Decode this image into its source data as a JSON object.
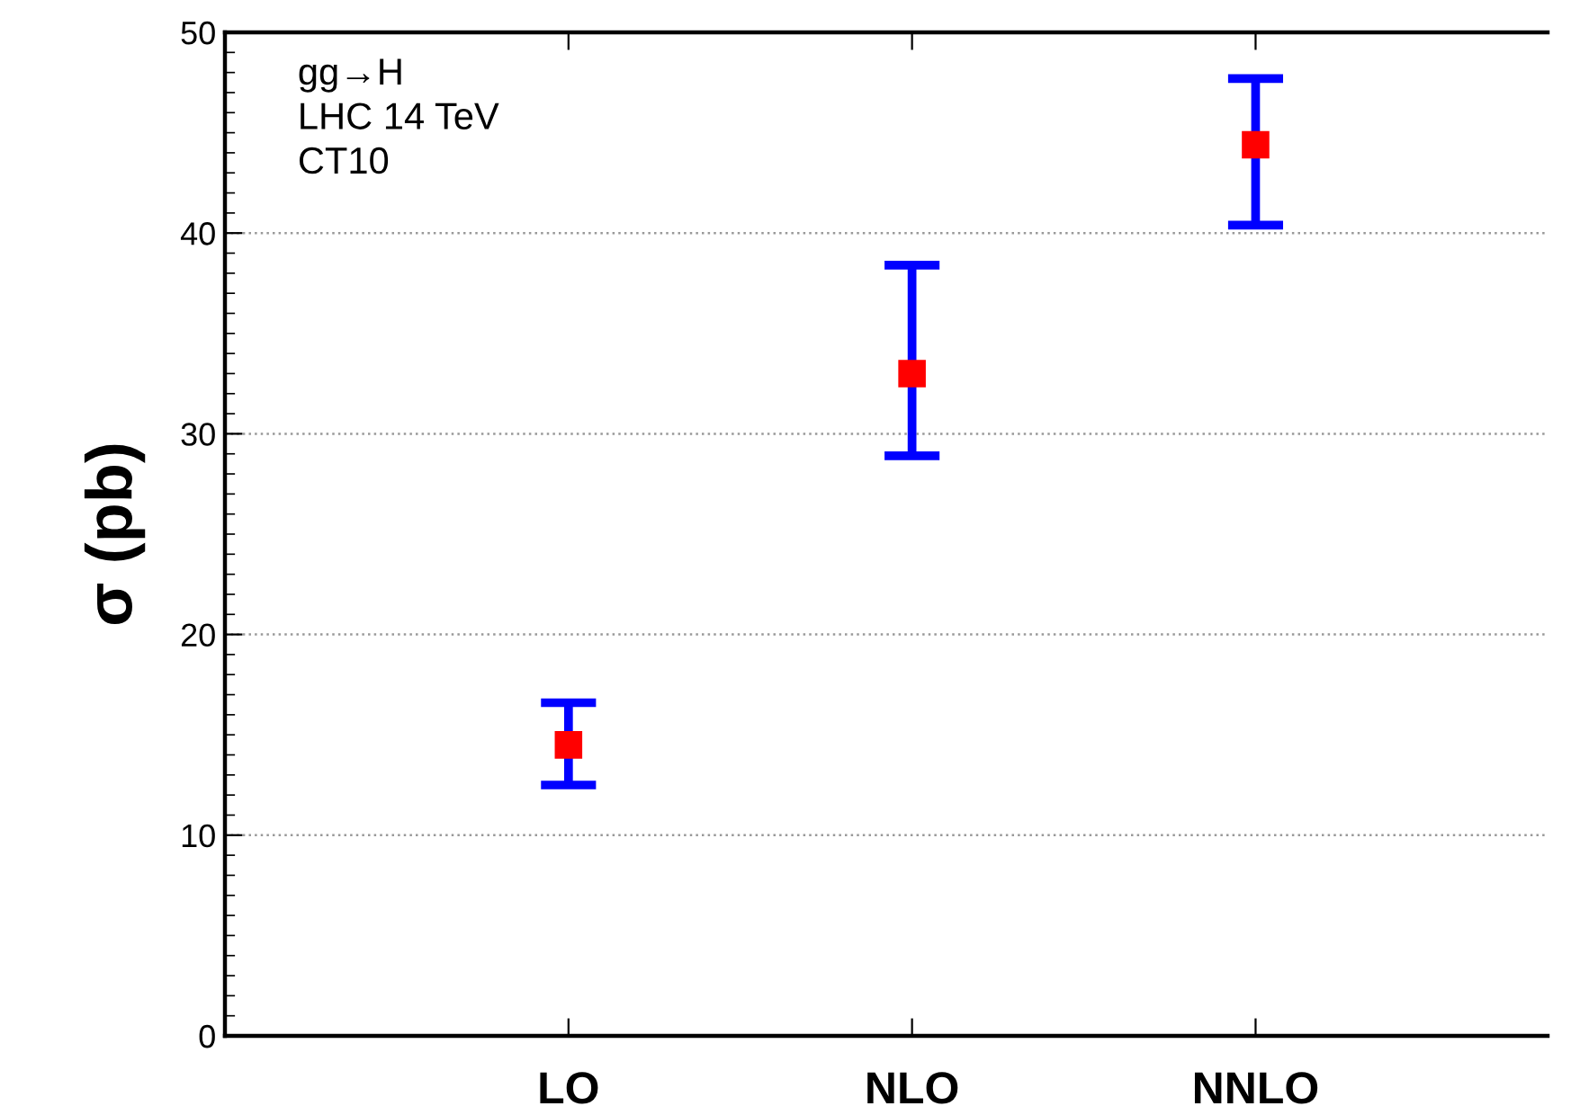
{
  "chart_data": {
    "type": "scatter",
    "ylabel": "σ (pb)",
    "categories": [
      "LO",
      "NLO",
      "NNLO"
    ],
    "series": [
      {
        "color": "#ff0000",
        "values": [
          14.5,
          33.0,
          44.4
        ],
        "errors": [
          [
            12.5,
            16.6
          ],
          [
            28.9,
            38.4
          ],
          [
            40.4,
            47.7
          ]
        ]
      }
    ],
    "ylim": [
      0,
      50
    ],
    "yticks": [
      0,
      10,
      20,
      30,
      40,
      50
    ],
    "grid": "y",
    "marker": "square",
    "annotations": [
      "gg→H\nLHC 14 TeV\nCT10"
    ]
  }
}
